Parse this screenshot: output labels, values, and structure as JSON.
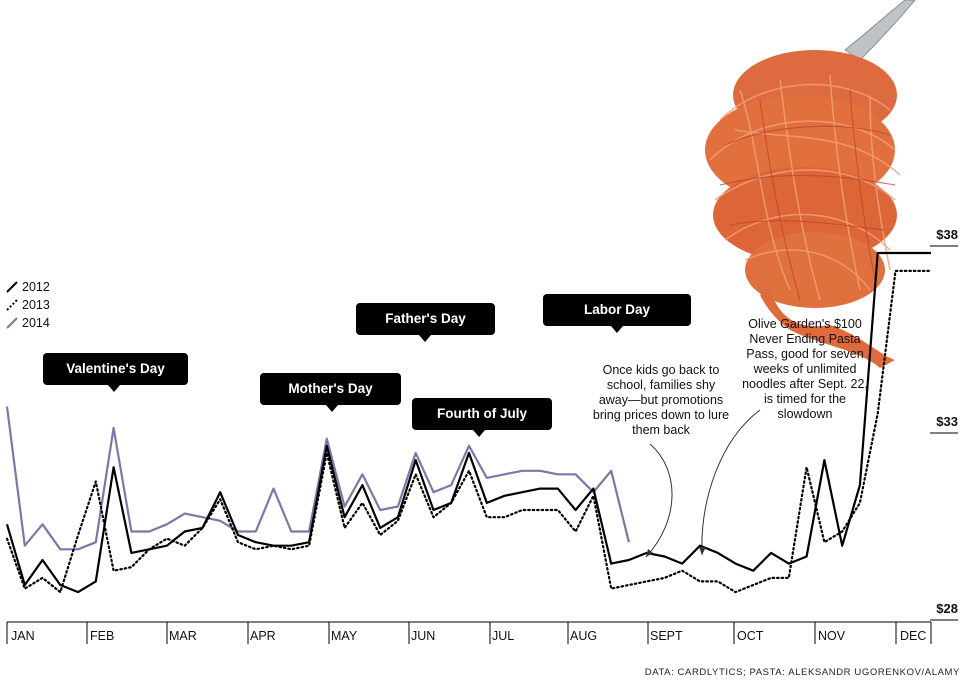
{
  "chart_data": {
    "type": "line",
    "title": "",
    "xlabel": "",
    "ylabel": "",
    "y_ticks": [
      "$28",
      "$33",
      "$38"
    ],
    "ylim": [
      28,
      38
    ],
    "x_ticks": [
      "JAN",
      "FEB",
      "MAR",
      "APR",
      "MAY",
      "JUN",
      "JUL",
      "AUG",
      "SEPT",
      "OCT",
      "NOV",
      "DEC"
    ],
    "x_unit": "week of year",
    "xlim": [
      1,
      53
    ],
    "legend_placement": "left",
    "series": [
      {
        "name": "2012",
        "style": "solid",
        "color": "#000000",
        "x": [
          1,
          2,
          3,
          4,
          5,
          6,
          7,
          8,
          9,
          10,
          11,
          12,
          13,
          14,
          15,
          16,
          17,
          18,
          19,
          20,
          21,
          22,
          23,
          24,
          25,
          26,
          27,
          28,
          29,
          30,
          31,
          32,
          33,
          34,
          35,
          36,
          37,
          38,
          39,
          40,
          41,
          42,
          43,
          44,
          45,
          46,
          47,
          48,
          49,
          50,
          51,
          52,
          53
        ],
        "y": [
          30.4,
          28.7,
          29.4,
          28.7,
          28.5,
          28.8,
          32.0,
          29.6,
          29.7,
          29.8,
          30.2,
          30.3,
          31.3,
          30.1,
          29.9,
          29.8,
          29.8,
          29.9,
          32.6,
          30.6,
          31.5,
          30.3,
          30.6,
          32.2,
          30.8,
          31.0,
          32.4,
          31.0,
          31.2,
          31.3,
          31.4,
          31.4,
          30.8,
          31.4,
          29.3,
          29.4,
          29.6,
          29.5,
          29.3,
          29.8,
          29.6,
          29.3,
          29.1,
          29.6,
          29.3,
          29.5,
          32.2,
          29.8,
          31.5,
          38.0,
          38.0,
          38.0,
          38.0
        ]
      },
      {
        "name": "2013",
        "style": "dotted",
        "color": "#000000",
        "x": [
          1,
          2,
          3,
          4,
          5,
          6,
          7,
          8,
          9,
          10,
          11,
          12,
          13,
          14,
          15,
          16,
          17,
          18,
          19,
          20,
          21,
          22,
          23,
          24,
          25,
          26,
          27,
          28,
          29,
          30,
          31,
          32,
          33,
          34,
          35,
          36,
          37,
          38,
          39,
          40,
          41,
          42,
          43,
          44,
          45,
          46,
          47,
          48,
          49,
          50,
          51,
          52,
          53
        ],
        "y": [
          30.0,
          28.6,
          28.9,
          28.5,
          30.1,
          31.6,
          29.1,
          29.2,
          29.7,
          30.0,
          29.8,
          30.3,
          31.1,
          29.9,
          29.7,
          29.8,
          29.7,
          29.8,
          32.4,
          30.3,
          31.0,
          30.1,
          30.5,
          31.8,
          30.6,
          31.0,
          31.9,
          30.6,
          30.6,
          30.8,
          30.8,
          30.8,
          30.2,
          31.2,
          28.6,
          28.7,
          28.8,
          28.9,
          29.1,
          28.8,
          28.8,
          28.5,
          28.7,
          28.9,
          28.9,
          32.0,
          29.9,
          30.2,
          31.0,
          33.5,
          37.5,
          37.5,
          37.5
        ]
      },
      {
        "name": "2014",
        "style": "solid",
        "color": "#7d77a6",
        "x": [
          1,
          2,
          3,
          4,
          5,
          6,
          7,
          8,
          9,
          10,
          11,
          12,
          13,
          14,
          15,
          16,
          17,
          18,
          19,
          20,
          21,
          22,
          23,
          24,
          25,
          26,
          27,
          28,
          29,
          30,
          31,
          32,
          33,
          34,
          35,
          36
        ],
        "y": [
          33.7,
          29.8,
          30.4,
          29.7,
          29.7,
          29.9,
          33.1,
          30.2,
          30.2,
          30.4,
          30.7,
          30.6,
          30.5,
          30.2,
          30.2,
          31.4,
          30.2,
          30.2,
          32.8,
          30.9,
          31.8,
          30.8,
          30.9,
          32.4,
          31.3,
          31.5,
          32.6,
          31.7,
          31.8,
          31.9,
          31.9,
          31.8,
          31.8,
          31.3,
          31.9,
          29.9
        ]
      }
    ],
    "annotations": {
      "holidays": [
        {
          "label": "Valentine's Day",
          "week": 7
        },
        {
          "label": "Mother's Day",
          "week": 19
        },
        {
          "label": "Father's Day",
          "week": 25
        },
        {
          "label": "Fourth of July",
          "week": 27
        },
        {
          "label": "Labor Day",
          "week": 35
        }
      ],
      "notes": [
        {
          "lines": [
            "Once kids go back to",
            "school, families shy",
            "away—but promotions",
            "bring prices down to lure",
            "them back"
          ]
        },
        {
          "lines": [
            "Olive Garden's $100",
            "Never Ending Pasta",
            "Pass, good for seven",
            "weeks of unlimited",
            "noodles after Sept. 22,",
            "is timed for the",
            "slowdown"
          ]
        }
      ]
    }
  },
  "credit": "DATA: CARDLYTICS; PASTA: ALEKSANDR UGORENKOV/ALAMY",
  "image_subject": "spaghetti-on-fork",
  "colors": {
    "line_2014": "#7d77a6",
    "sauce": "#e0643a",
    "callout_bg": "#000000"
  }
}
